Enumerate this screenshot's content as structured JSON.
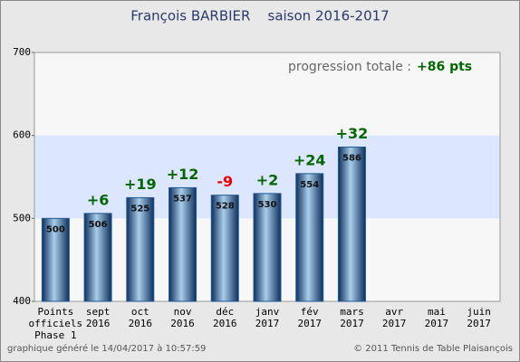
{
  "chart_data": {
    "type": "bar",
    "title": "François BARBIER    saison 2016-2017",
    "categories": [
      "Points\nofficiels\nPhase 1",
      "sept\n2016",
      "oct\n2016",
      "nov\n2016",
      "déc\n2016",
      "janv\n2017",
      "fév\n2017",
      "mars\n2017",
      "avr\n2017",
      "mai\n2017",
      "juin\n2017"
    ],
    "values": [
      500,
      506,
      525,
      537,
      528,
      530,
      554,
      586,
      null,
      null,
      null
    ],
    "annotations": [
      null,
      "+6",
      "+19",
      "+12",
      "-9",
      "+2",
      "+24",
      "+32",
      null,
      null,
      null
    ],
    "positive_color": "#006600",
    "negative_color": "#ee0000",
    "color": "#1f5a96",
    "ylim": [
      400,
      700
    ],
    "yticks": [
      400,
      500,
      600,
      700
    ],
    "band": [
      500,
      600
    ],
    "band_color": "#dde6ff",
    "progression_label": "progression totale :",
    "progression_value": "+86 pts",
    "footer_left": "graphique généré le 14/04/2017 à 10:57:59",
    "footer_right": "© 2011 Tennis de Table Plaisançois"
  }
}
